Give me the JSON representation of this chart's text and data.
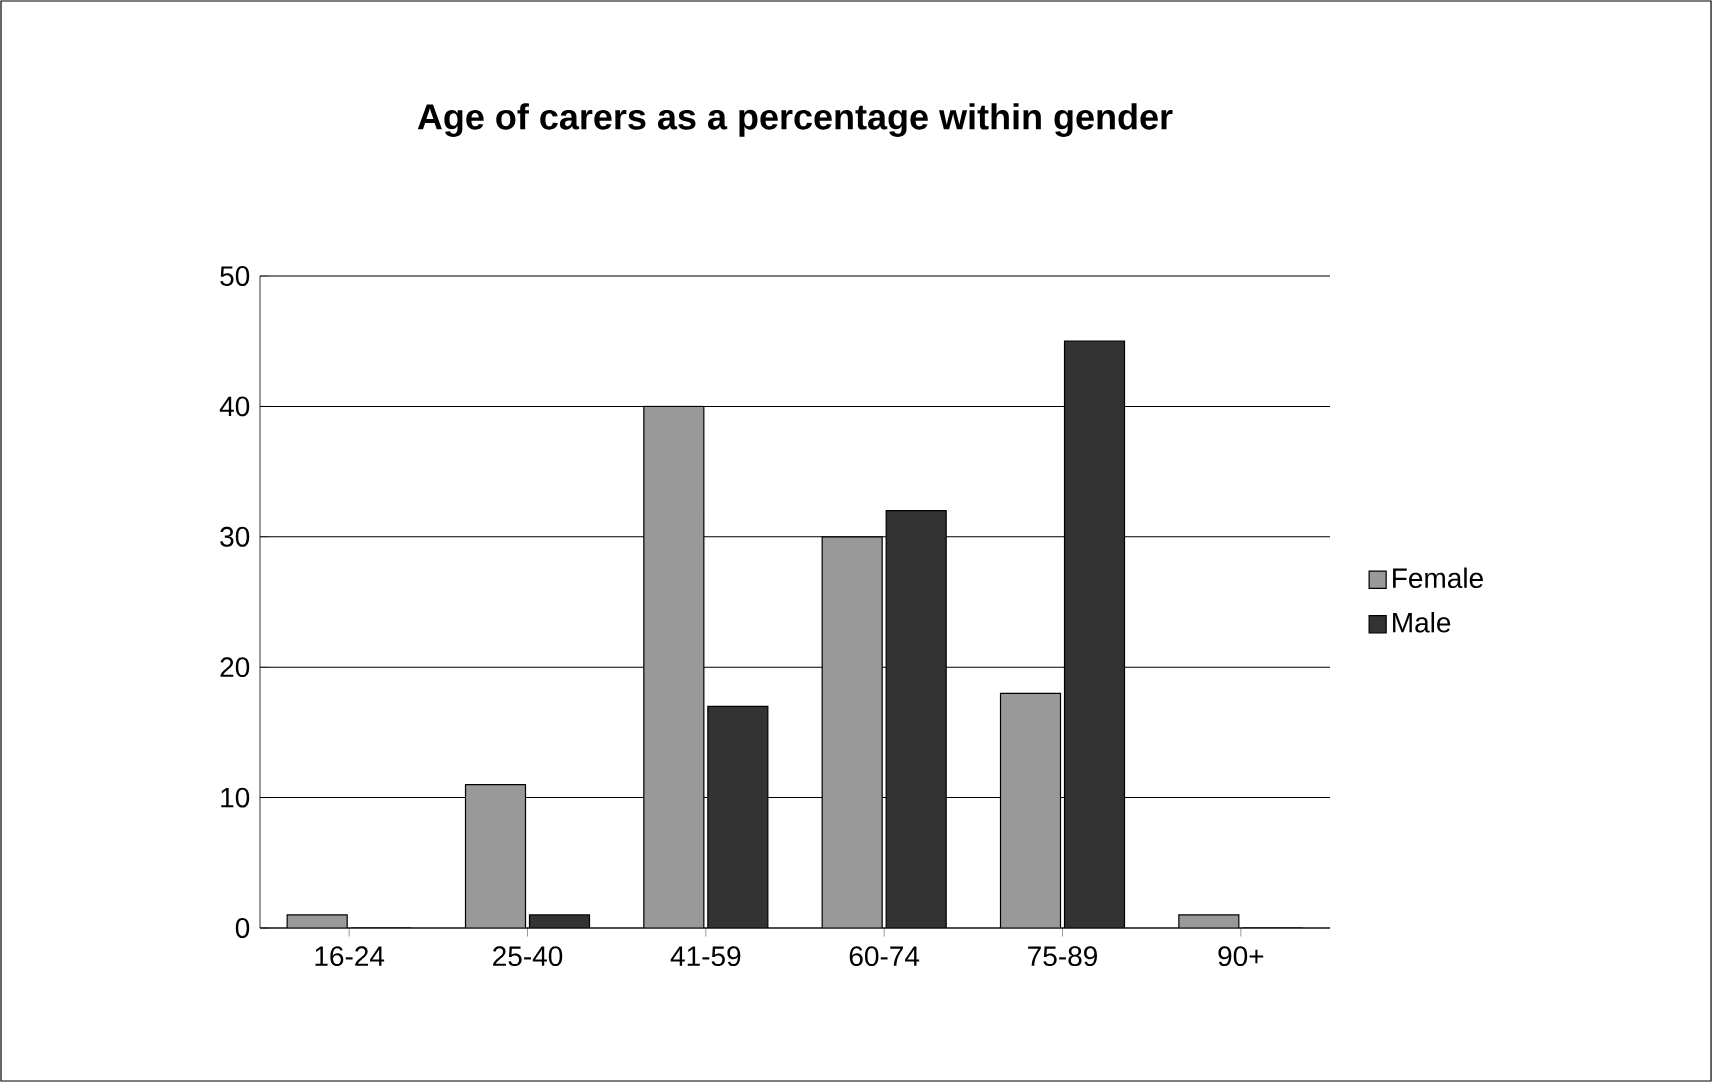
{
  "chart_data": {
    "type": "bar",
    "title": "Age of carers as a percentage within gender",
    "categories": [
      "16-24",
      "25-40",
      "41-59",
      "60-74",
      "75-89",
      "90+"
    ],
    "series": [
      {
        "name": "Female",
        "color": "#999999",
        "values": [
          1,
          11,
          40,
          30,
          18,
          1
        ]
      },
      {
        "name": "Male",
        "color": "#333333",
        "values": [
          0,
          1,
          17,
          32,
          45,
          0
        ]
      }
    ],
    "ylim": [
      0,
      50
    ],
    "yticks": [
      0,
      10,
      20,
      30,
      40,
      50
    ],
    "grid": "y",
    "legend": "right"
  }
}
